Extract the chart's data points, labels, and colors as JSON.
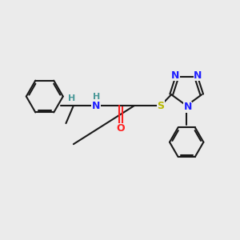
{
  "background_color": "#ebebeb",
  "bond_color": "#1a1a1a",
  "N_color": "#2020ff",
  "O_color": "#ff2020",
  "S_color": "#b8b800",
  "H_color": "#4a9898",
  "figsize": [
    3.0,
    3.0
  ],
  "dpi": 100,
  "xlim": [
    0,
    10
  ],
  "ylim": [
    0,
    10
  ]
}
